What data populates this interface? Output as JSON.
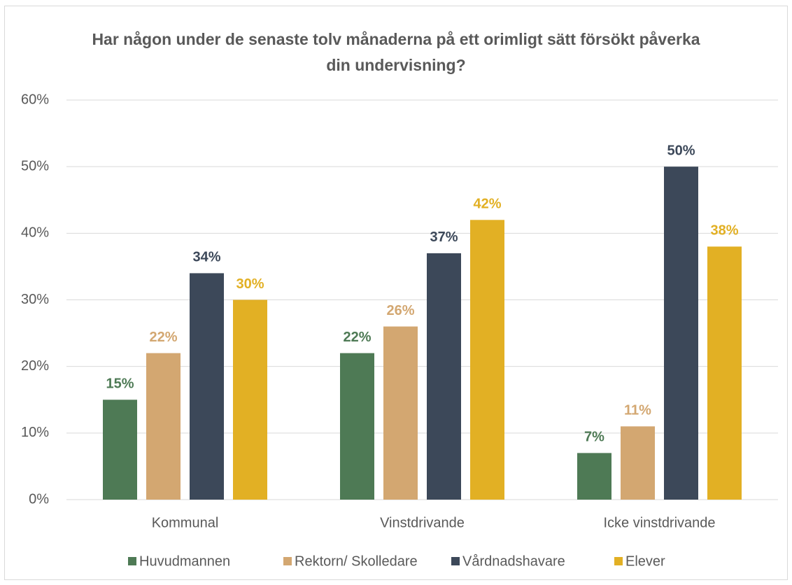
{
  "chart_data": {
    "type": "bar",
    "title": "Har någon under de senaste tolv månaderna på ett orimligt sätt försökt påverka din undervisning?",
    "categories": [
      "Kommunal",
      "Vinstdrivande",
      "Icke vinstdrivande"
    ],
    "series": [
      {
        "name": "Huvudmannen",
        "color": "#4e7a55",
        "values": [
          15,
          22,
          7
        ],
        "value_labels": [
          "15%",
          "22%",
          "7%"
        ]
      },
      {
        "name": "Rektorn/ Skolledare",
        "color": "#d3a771",
        "values": [
          22,
          26,
          11
        ],
        "value_labels": [
          "22%",
          "26%",
          "11%"
        ]
      },
      {
        "name": "Vårdnadshavare",
        "color": "#3c4859",
        "values": [
          34,
          37,
          50
        ],
        "value_labels": [
          "34%",
          "37%",
          "50%"
        ]
      },
      {
        "name": "Elever",
        "color": "#e2b024",
        "values": [
          30,
          42,
          38
        ],
        "value_labels": [
          "30%",
          "42%",
          "38%"
        ]
      }
    ],
    "ylim": [
      0,
      60
    ],
    "yticks": [
      {
        "value": 0,
        "label": "0%"
      },
      {
        "value": 10,
        "label": "10%"
      },
      {
        "value": 20,
        "label": "20%"
      },
      {
        "value": 30,
        "label": "30%"
      },
      {
        "value": 40,
        "label": "40%"
      },
      {
        "value": 50,
        "label": "50%"
      },
      {
        "value": 60,
        "label": "60%"
      }
    ],
    "grid": true,
    "legend": "bottom"
  }
}
